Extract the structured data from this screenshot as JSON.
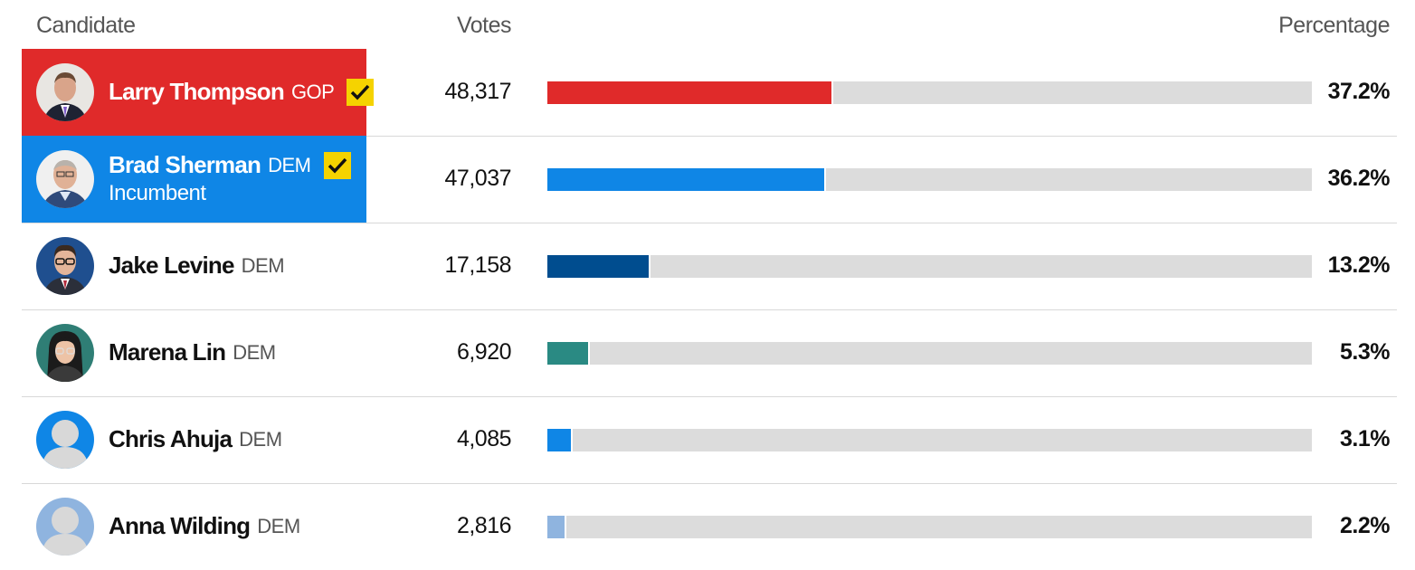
{
  "headers": {
    "candidate": "Candidate",
    "votes": "Votes",
    "percentage": "Percentage"
  },
  "colors": {
    "gop_winner_bg": "#e02a2a",
    "dem_winner_bg": "#0f86e6",
    "winner_check_bg": "#f5d300",
    "bar_track": "#dcdcdc"
  },
  "candidates": [
    {
      "name": "Larry Thompson",
      "party": "GOP",
      "winner": true,
      "incumbent": "",
      "votes": "48,317",
      "percentage": "37.2%",
      "share": 0.372,
      "bar_color": "#e02a2a",
      "avatar": "photo-icon"
    },
    {
      "name": "Brad Sherman",
      "party": "DEM",
      "winner": true,
      "incumbent": "Incumbent",
      "votes": "47,037",
      "percentage": "36.2%",
      "share": 0.362,
      "bar_color": "#0f86e6",
      "avatar": "photo-icon"
    },
    {
      "name": "Jake Levine",
      "party": "DEM",
      "winner": false,
      "incumbent": "",
      "votes": "17,158",
      "percentage": "13.2%",
      "share": 0.132,
      "bar_color": "#004d8f",
      "avatar": "photo-icon"
    },
    {
      "name": "Marena Lin",
      "party": "DEM",
      "winner": false,
      "incumbent": "",
      "votes": "6,920",
      "percentage": "5.3%",
      "share": 0.053,
      "bar_color": "#2a8a83",
      "avatar": "photo-icon"
    },
    {
      "name": "Chris Ahuja",
      "party": "DEM",
      "winner": false,
      "incumbent": "",
      "votes": "4,085",
      "percentage": "3.1%",
      "share": 0.031,
      "bar_color": "#0f86e6",
      "avatar": "placeholder-person-icon"
    },
    {
      "name": "Anna Wilding",
      "party": "DEM",
      "winner": false,
      "incumbent": "",
      "votes": "2,816",
      "percentage": "2.2%",
      "share": 0.022,
      "bar_color": "#8fb4df",
      "avatar": "placeholder-person-icon"
    }
  ]
}
